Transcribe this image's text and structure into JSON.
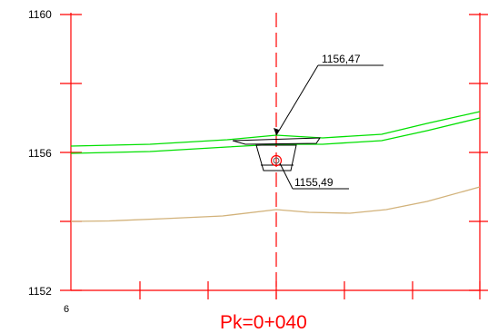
{
  "colors": {
    "grid": "#ff0000",
    "terrain": "#00e000",
    "ground": "#d2b27a",
    "structure": "#000000",
    "background": "#ffffff"
  },
  "axis": {
    "y_tick_labels": [
      "1160",
      "1156",
      "1152"
    ],
    "x_tick_label": "6"
  },
  "annotations": {
    "upper_elevation": "1156,47",
    "lower_elevation": "1155,49"
  },
  "profile": {
    "station_label": "Pk=0+040"
  }
}
